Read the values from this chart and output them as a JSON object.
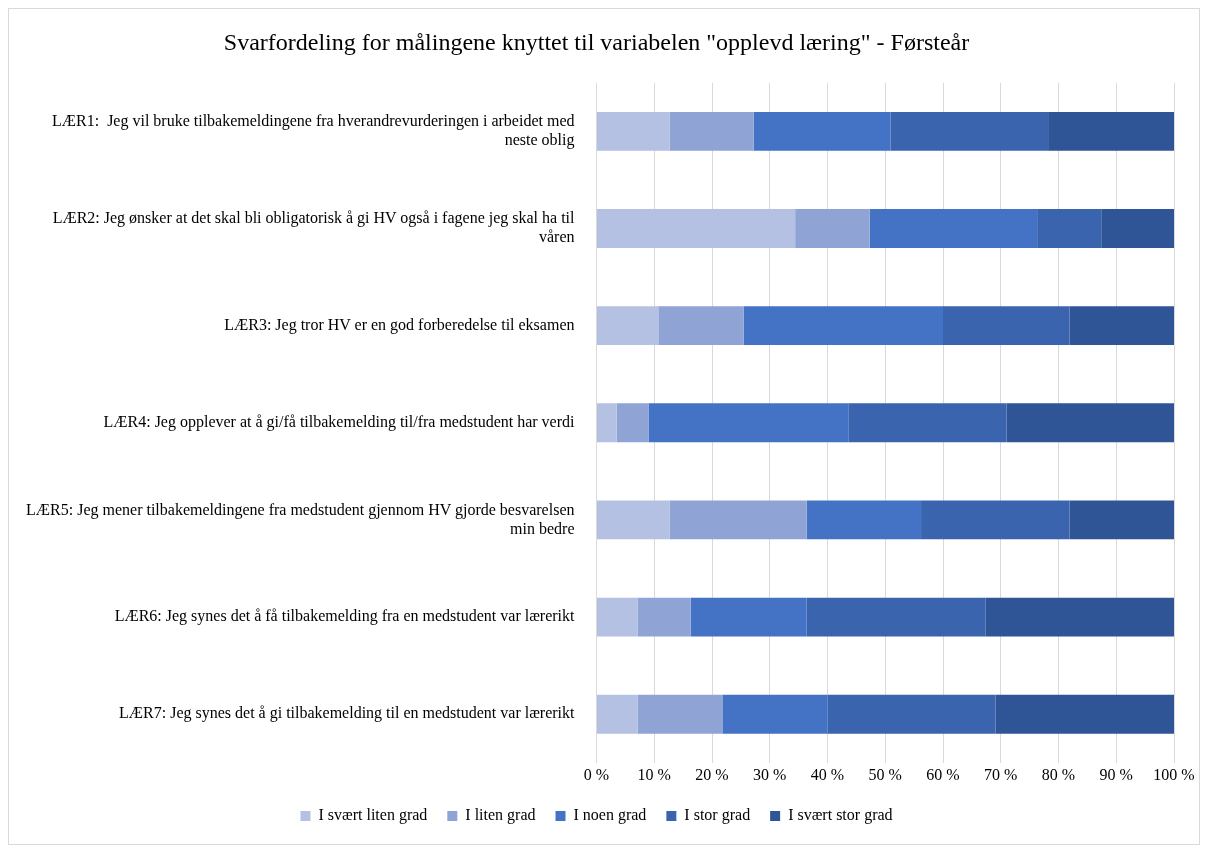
{
  "chart_data": {
    "type": "bar",
    "orientation": "horizontal",
    "stacked": true,
    "title": "Svarfordeling for målingene knyttet til variabelen \"opplevd læring\" - Førsteår",
    "categories": [
      "LÆR1:  Jeg vil bruke tilbakemeldingene fra hverandrevurderingen i arbeidet med neste oblig",
      "LÆR2: Jeg ønsker at det skal bli obligatorisk å gi HV også i fagene jeg skal ha til våren",
      "LÆR3: Jeg tror HV er en god forberedelse til eksamen",
      "LÆR4: Jeg opplever at å gi/få tilbakemelding til/fra medstudent har verdi",
      "LÆR5: Jeg mener tilbakemeldingene fra medstudent gjennom HV gjorde besvarelsen min bedre",
      "LÆR6: Jeg synes det å få tilbakemelding fra en medstudent var lærerikt",
      "LÆR7: Jeg synes det å gi tilbakemelding til en medstudent var lærerikt"
    ],
    "series": [
      {
        "name": "I svært liten grad",
        "color": "#b4c1e3",
        "values": [
          12.7,
          34.4,
          10.7,
          3.5,
          12.7,
          7.1,
          7.1
        ]
      },
      {
        "name": "I liten grad",
        "color": "#8fa3d4",
        "values": [
          14.5,
          12.9,
          14.8,
          5.5,
          23.7,
          9.2,
          14.7
        ]
      },
      {
        "name": "I noen grad",
        "color": "#4472c4",
        "values": [
          23.7,
          29.0,
          34.5,
          34.6,
          19.8,
          20.1,
          18.2
        ]
      },
      {
        "name": "I stor grad",
        "color": "#3a64ad",
        "values": [
          27.3,
          11.1,
          21.9,
          27.4,
          25.7,
          31.0,
          29.1
        ]
      },
      {
        "name": "I svært stor grad",
        "color": "#2f5597",
        "values": [
          21.8,
          12.6,
          18.1,
          29.0,
          18.1,
          32.6,
          30.9
        ]
      }
    ],
    "xlim": [
      0,
      100
    ],
    "xticks": [
      {
        "value": 0,
        "label": "0 %"
      },
      {
        "value": 10,
        "label": "10 %"
      },
      {
        "value": 20,
        "label": "20 %"
      },
      {
        "value": 30,
        "label": "30 %"
      },
      {
        "value": 40,
        "label": "40 %"
      },
      {
        "value": 50,
        "label": "50 %"
      },
      {
        "value": 60,
        "label": "60 %"
      },
      {
        "value": 70,
        "label": "70 %"
      },
      {
        "value": 80,
        "label": "80 %"
      },
      {
        "value": 90,
        "label": "90 %"
      },
      {
        "value": 100,
        "label": "100 %"
      }
    ],
    "grid": "x",
    "legend": "bottom"
  }
}
